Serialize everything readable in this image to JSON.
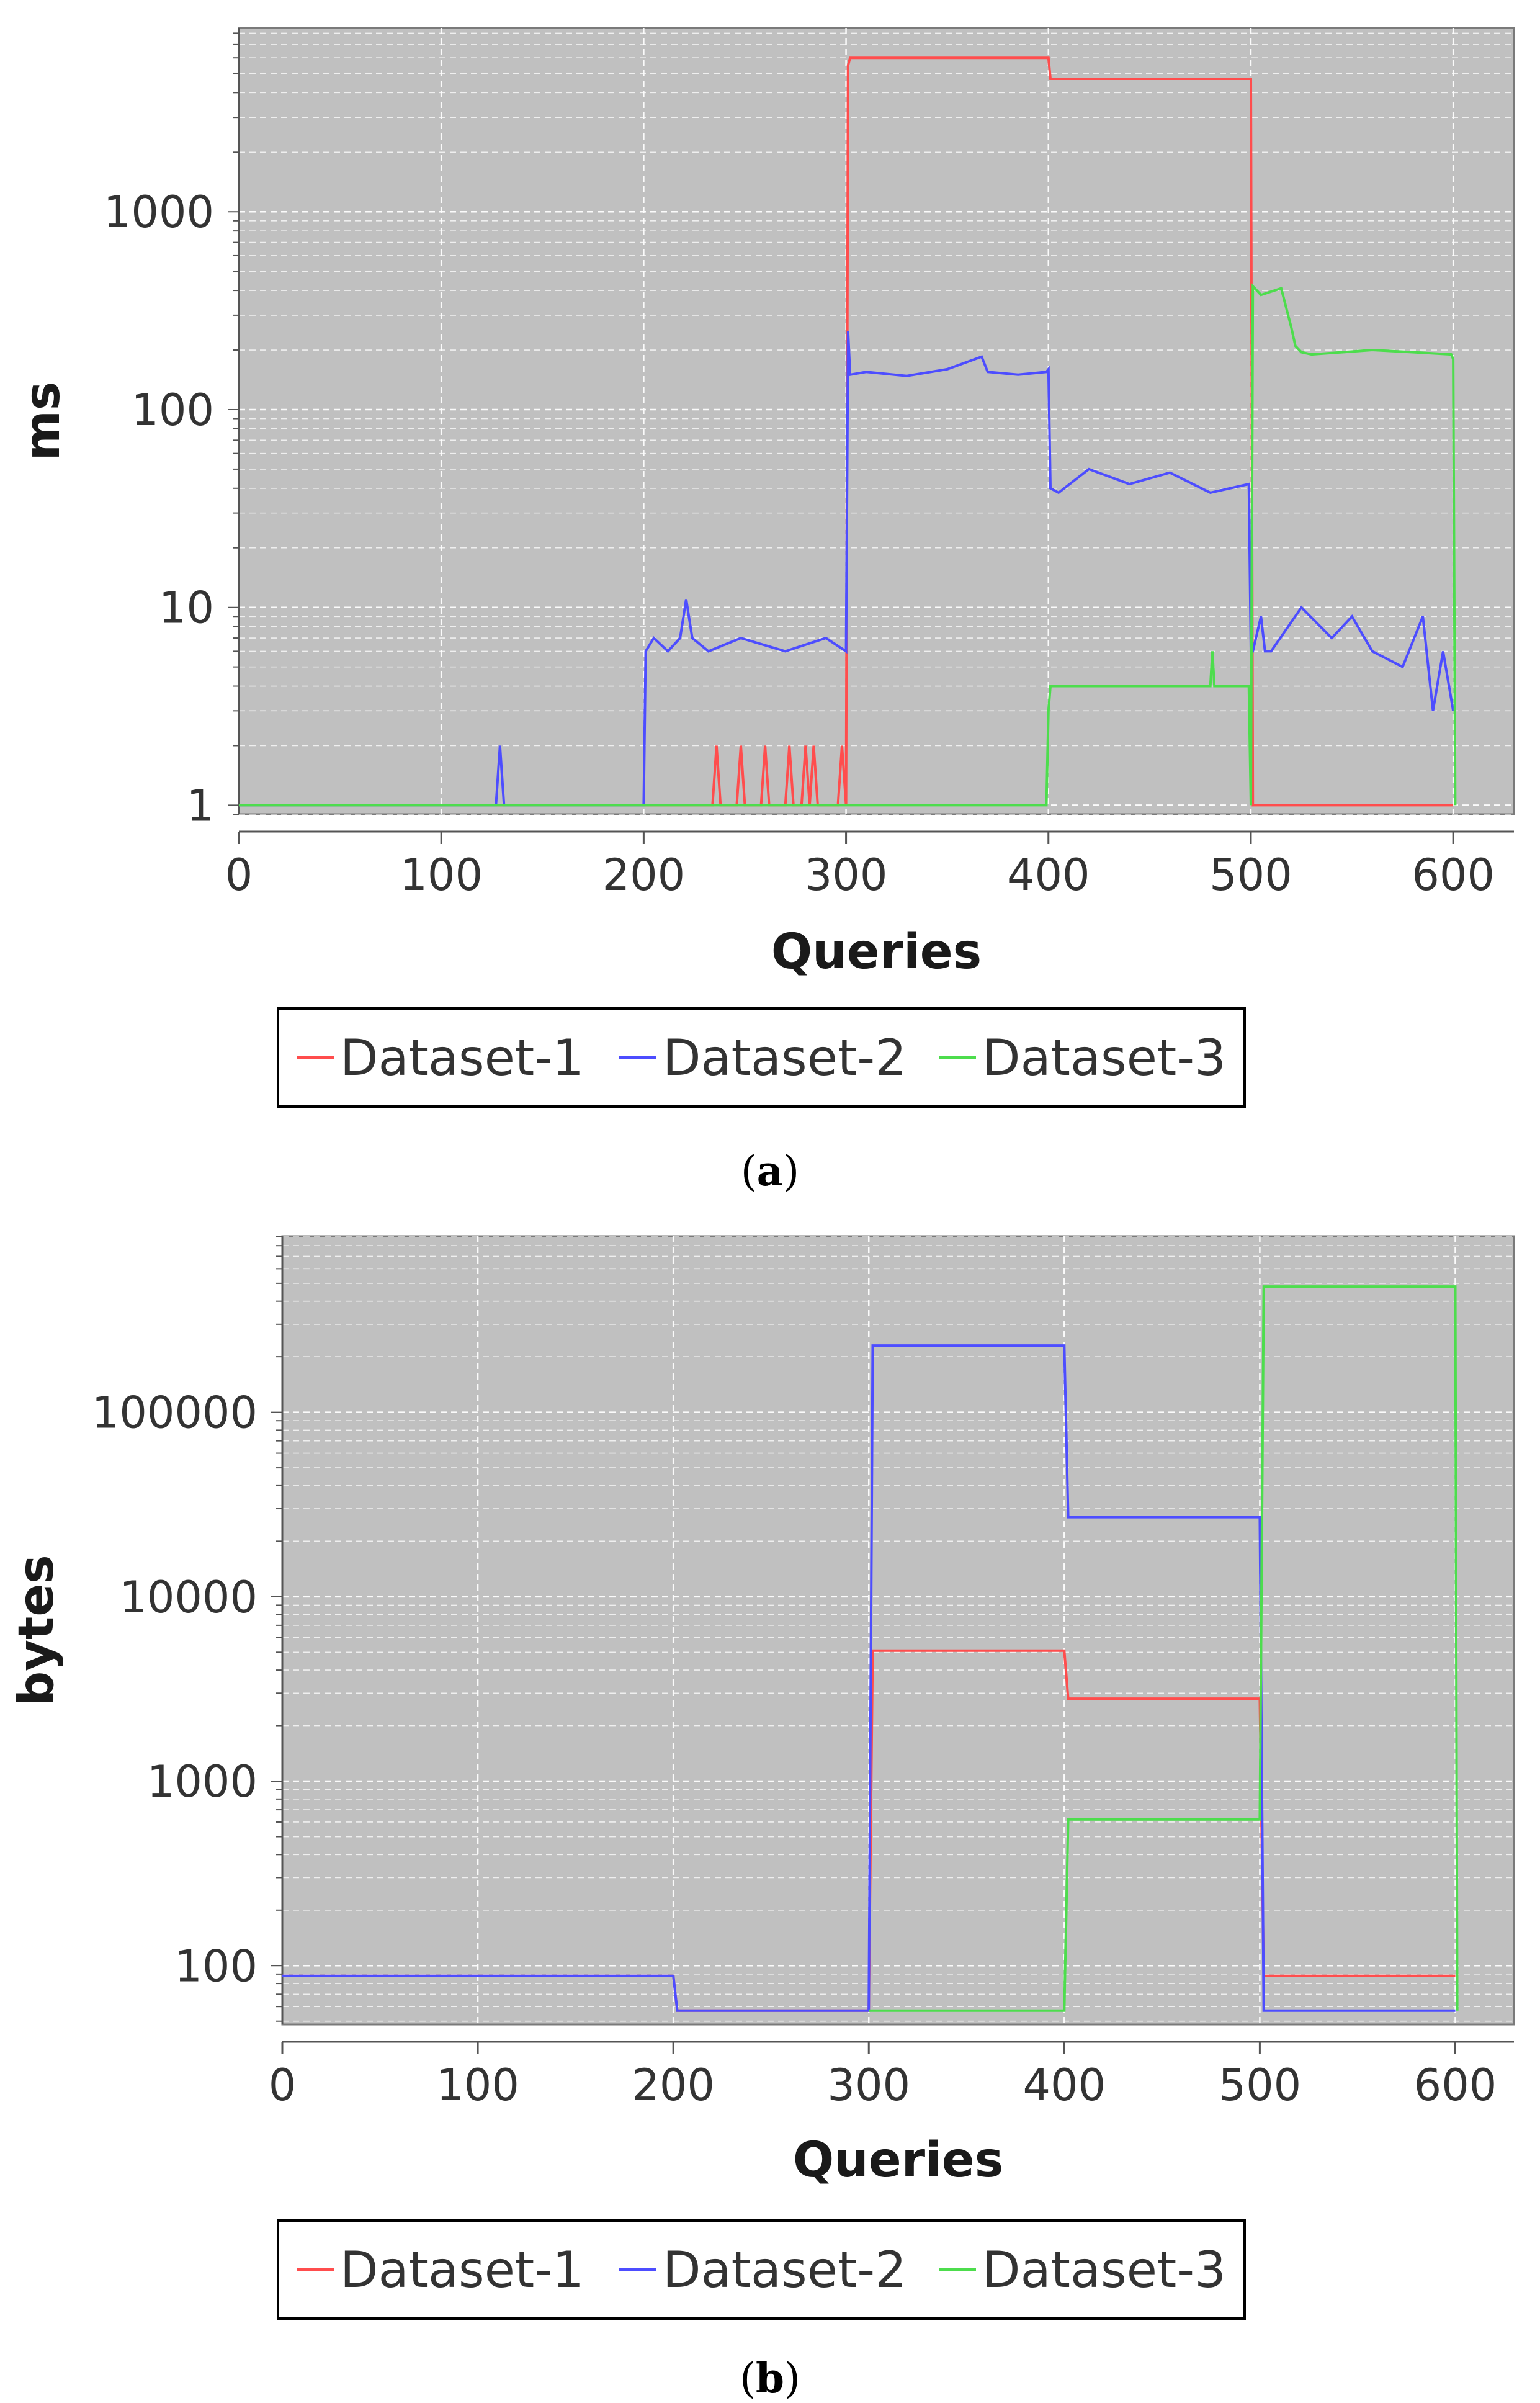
{
  "chart_data": [
    {
      "type": "line",
      "id": "a",
      "caption_open": "(",
      "caption_letter": "a",
      "caption_close": ")",
      "xlabel": "Queries",
      "ylabel": "ms",
      "xscale": "linear",
      "yscale": "log",
      "xlim": [
        0,
        630
      ],
      "ylim": [
        0.9,
        8500
      ],
      "xticks": [
        "0",
        "100",
        "200",
        "300",
        "400",
        "500",
        "600"
      ],
      "yticks": [
        "1",
        "10",
        "100",
        "1000"
      ],
      "grid": true,
      "legend_placement": "bottom",
      "series": [
        {
          "name": "Dataset-1",
          "color": "#ff4d4d",
          "x": [
            0,
            234,
            236,
            238,
            246,
            248,
            250,
            258,
            260,
            262,
            270,
            272,
            274,
            278,
            280,
            282,
            284,
            286,
            288,
            296,
            298,
            300,
            301,
            302,
            400,
            401,
            500,
            501,
            600
          ],
          "y": [
            1,
            1,
            2,
            1,
            1,
            2,
            1,
            1,
            2,
            1,
            1,
            2,
            1,
            1,
            2,
            1,
            2,
            1,
            1,
            1,
            2,
            1,
            5500,
            6000,
            6000,
            4700,
            4700,
            1,
            1
          ]
        },
        {
          "name": "Dataset-2",
          "color": "#4d4dff",
          "x": [
            0,
            127,
            129,
            131,
            200,
            201,
            205,
            212,
            218,
            221,
            224,
            232,
            248,
            270,
            290,
            300,
            301,
            302,
            310,
            330,
            350,
            367,
            370,
            385,
            399,
            400,
            401,
            405,
            420,
            440,
            460,
            480,
            499,
            500,
            501,
            505,
            507,
            510,
            525,
            540,
            550,
            560,
            575,
            585,
            590,
            595,
            600
          ],
          "y": [
            1,
            1,
            2,
            1,
            1,
            6,
            7,
            6,
            7,
            11,
            7,
            6,
            7,
            6,
            7,
            6,
            250,
            150,
            155,
            148,
            160,
            185,
            155,
            150,
            155,
            160,
            40,
            38,
            50,
            42,
            48,
            38,
            42,
            6,
            6,
            9,
            6,
            6,
            10,
            7,
            9,
            6,
            5,
            9,
            3,
            6,
            3
          ]
        },
        {
          "name": "Dataset-3",
          "color": "#4ddd4d",
          "x": [
            0,
            398,
            399,
            400,
            401,
            402,
            480,
            481,
            482,
            483,
            498,
            499,
            500,
            501,
            505,
            515,
            520,
            522,
            525,
            530,
            560,
            580,
            599,
            600,
            601
          ],
          "y": [
            1,
            1,
            1,
            3,
            4,
            4,
            4,
            6,
            4,
            4,
            4,
            4,
            1,
            420,
            380,
            410,
            260,
            210,
            195,
            190,
            200,
            195,
            190,
            180,
            1
          ]
        }
      ]
    },
    {
      "type": "line",
      "id": "b",
      "caption_open": "(",
      "caption_letter": "b",
      "caption_close": ")",
      "xlabel": "Queries",
      "ylabel": "bytes",
      "xscale": "linear",
      "yscale": "log",
      "xlim": [
        0,
        630
      ],
      "ylim": [
        48,
        900000
      ],
      "xticks": [
        "0",
        "100",
        "200",
        "300",
        "400",
        "500",
        "600"
      ],
      "yticks": [
        "100",
        "1000",
        "10000",
        "100000"
      ],
      "grid": true,
      "legend_placement": "bottom",
      "series": [
        {
          "name": "Dataset-1",
          "color": "#ff4d4d",
          "x": [
            0,
            200,
            202,
            300,
            302,
            400,
            402,
            500,
            502,
            600
          ],
          "y": [
            88,
            88,
            57,
            57,
            5100,
            5100,
            2800,
            2800,
            88,
            88
          ]
        },
        {
          "name": "Dataset-2",
          "color": "#4d4dff",
          "x": [
            0,
            200,
            202,
            300,
            302,
            400,
            402,
            500,
            502,
            600
          ],
          "y": [
            88,
            88,
            57,
            57,
            230000,
            230000,
            27000,
            27000,
            57,
            57
          ]
        },
        {
          "name": "Dataset-3",
          "color": "#4ddd4d",
          "x": [
            300,
            302,
            400,
            402,
            500,
            502,
            600,
            601
          ],
          "y": [
            57,
            57,
            57,
            620,
            620,
            480000,
            480000,
            57
          ]
        }
      ]
    }
  ]
}
